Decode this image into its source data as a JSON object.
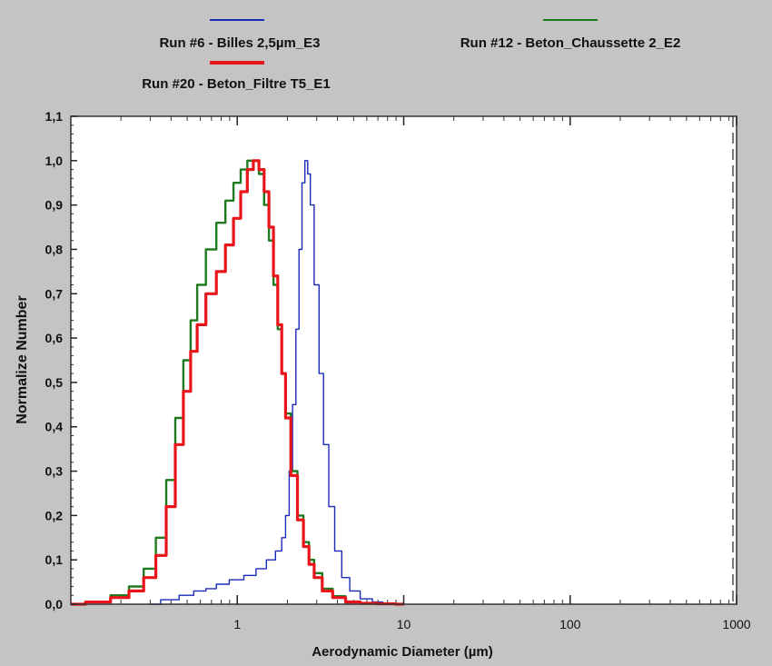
{
  "chart_data": {
    "type": "line",
    "xlabel": "Aerodynamic Diameter (µm)",
    "ylabel": "Normalize Number",
    "xscale": "log",
    "xlim": [
      0.1,
      1000
    ],
    "ylim": [
      0,
      1.1
    ],
    "x_ticks": [
      1,
      10,
      100,
      1000
    ],
    "x_tick_labels": [
      "1",
      "10",
      "100",
      "1000"
    ],
    "y_ticks": [
      0,
      0.1,
      0.2,
      0.3,
      0.4,
      0.5,
      0.6,
      0.7,
      0.8,
      0.9,
      1.0,
      1.1
    ],
    "y_tick_labels": [
      "0,0",
      "0,1",
      "0,2",
      "0,3",
      "0,4",
      "0,5",
      "0,6",
      "0,7",
      "0,8",
      "0,9",
      "1,0",
      "1,1"
    ],
    "grid": false,
    "legend_position": "top",
    "series": [
      {
        "name": "Run #6 - Billes 2,5µm_E3",
        "color": "#1a2bb8",
        "x": [
          0.3,
          0.4,
          0.5,
          0.6,
          0.7,
          0.8,
          1.0,
          1.2,
          1.4,
          1.6,
          1.8,
          1.9,
          2.0,
          2.1,
          2.2,
          2.3,
          2.4,
          2.5,
          2.6,
          2.7,
          2.8,
          3.0,
          3.2,
          3.4,
          3.7,
          4.0,
          4.5,
          5.0,
          6.0,
          7.0,
          8.0,
          10.0
        ],
        "y": [
          0.0,
          0.01,
          0.02,
          0.03,
          0.035,
          0.045,
          0.055,
          0.065,
          0.08,
          0.1,
          0.12,
          0.15,
          0.2,
          0.3,
          0.45,
          0.62,
          0.8,
          0.95,
          1.0,
          0.97,
          0.9,
          0.72,
          0.52,
          0.36,
          0.22,
          0.12,
          0.06,
          0.03,
          0.012,
          0.005,
          0.002,
          0.0
        ]
      },
      {
        "name": "Run #12 - Beton_Chaussette 2_E2",
        "color": "#1f7a1f",
        "x": [
          0.1,
          0.15,
          0.2,
          0.25,
          0.3,
          0.35,
          0.4,
          0.45,
          0.5,
          0.55,
          0.6,
          0.7,
          0.8,
          0.9,
          1.0,
          1.1,
          1.2,
          1.3,
          1.4,
          1.5,
          1.6,
          1.7,
          1.8,
          1.9,
          2.0,
          2.2,
          2.4,
          2.6,
          2.8,
          3.0,
          3.5,
          4.0,
          5.0,
          6.0,
          8.0,
          10.0
        ],
        "y": [
          0.0,
          0.005,
          0.02,
          0.04,
          0.08,
          0.15,
          0.28,
          0.42,
          0.55,
          0.64,
          0.72,
          0.8,
          0.86,
          0.91,
          0.95,
          0.98,
          1.0,
          1.0,
          0.97,
          0.9,
          0.82,
          0.72,
          0.62,
          0.52,
          0.43,
          0.3,
          0.2,
          0.14,
          0.1,
          0.07,
          0.035,
          0.018,
          0.006,
          0.002,
          0.001,
          0.0
        ]
      },
      {
        "name": "Run #20 - Beton_Filtre T5_E1",
        "color": "#e8161b",
        "x": [
          0.1,
          0.15,
          0.2,
          0.25,
          0.3,
          0.35,
          0.4,
          0.45,
          0.5,
          0.55,
          0.6,
          0.7,
          0.8,
          0.9,
          1.0,
          1.1,
          1.2,
          1.3,
          1.4,
          1.5,
          1.6,
          1.7,
          1.8,
          1.9,
          2.0,
          2.2,
          2.4,
          2.6,
          2.8,
          3.0,
          3.5,
          4.0,
          5.0,
          6.0,
          8.0,
          10.0
        ],
        "y": [
          0.0,
          0.005,
          0.015,
          0.03,
          0.06,
          0.11,
          0.22,
          0.36,
          0.48,
          0.57,
          0.63,
          0.7,
          0.75,
          0.81,
          0.87,
          0.93,
          0.98,
          1.0,
          0.98,
          0.93,
          0.85,
          0.74,
          0.63,
          0.52,
          0.42,
          0.29,
          0.19,
          0.13,
          0.09,
          0.06,
          0.03,
          0.015,
          0.005,
          0.002,
          0.001,
          0.0
        ]
      }
    ]
  }
}
